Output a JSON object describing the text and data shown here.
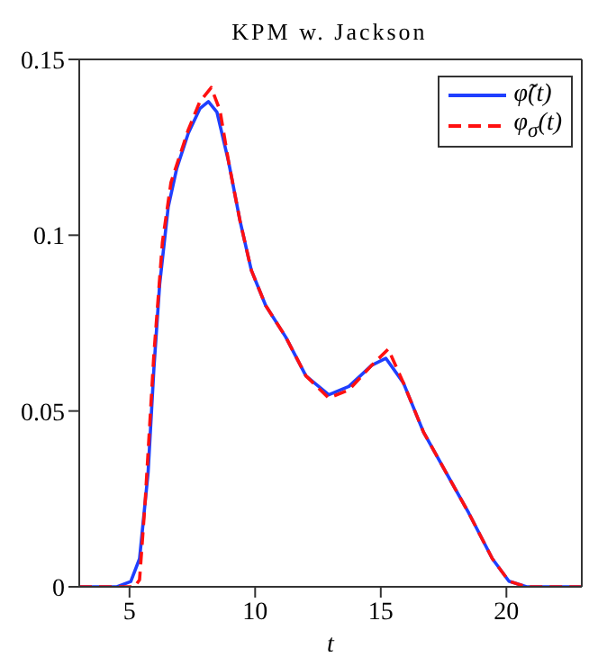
{
  "chart_data": {
    "type": "line",
    "title": "KPM w. Jackson",
    "xlabel": "t",
    "xlim": [
      3,
      23
    ],
    "xticks": [
      5,
      10,
      15,
      20
    ],
    "ylim": [
      0,
      0.15
    ],
    "yticks": [
      0,
      0.05,
      0.1,
      0.15
    ],
    "legend": "top right",
    "grid": false,
    "marker": "none",
    "series": [
      {
        "name": "φ̃(t)",
        "color": "#1f3fff",
        "line_style": "solid",
        "x": [
          3,
          4.5,
          5.05,
          5.4,
          5.74,
          5.97,
          6.2,
          6.54,
          6.88,
          7.34,
          7.8,
          8.14,
          8.48,
          8.94,
          9.4,
          9.85,
          10.42,
          11.22,
          12.02,
          12.93,
          13.73,
          14.64,
          15.2,
          15.9,
          16.7,
          17.6,
          18.5,
          19.44,
          20.1,
          20.8,
          23
        ],
        "values": [
          0,
          0,
          0.0015,
          0.008,
          0.0325,
          0.062,
          0.086,
          0.108,
          0.119,
          0.129,
          0.136,
          0.138,
          0.135,
          0.121,
          0.104,
          0.09,
          0.08,
          0.071,
          0.06,
          0.0546,
          0.057,
          0.063,
          0.065,
          0.058,
          0.044,
          0.0325,
          0.021,
          0.008,
          0.0016,
          0,
          0
        ]
      },
      {
        "name": "φ$_{σ}$(t)",
        "color": "#ff1010",
        "line_style": "dashed",
        "x": [
          3,
          5.2,
          5.4,
          5.63,
          5.97,
          6.31,
          6.65,
          7.34,
          7.8,
          8.25,
          8.6,
          8.94,
          9.4,
          9.85,
          10.42,
          11.22,
          12.02,
          12.93,
          13.73,
          14.64,
          15.3,
          15.9,
          16.7,
          17.6,
          18.5,
          19.44,
          20.1,
          20.8,
          23
        ],
        "values": [
          0,
          0,
          0.002,
          0.025,
          0.066,
          0.098,
          0.115,
          0.13,
          0.138,
          0.142,
          0.1355,
          0.121,
          0.104,
          0.09,
          0.08,
          0.071,
          0.06,
          0.0537,
          0.056,
          0.063,
          0.0676,
          0.058,
          0.044,
          0.0325,
          0.021,
          0.008,
          0.0016,
          0,
          0
        ]
      }
    ]
  }
}
